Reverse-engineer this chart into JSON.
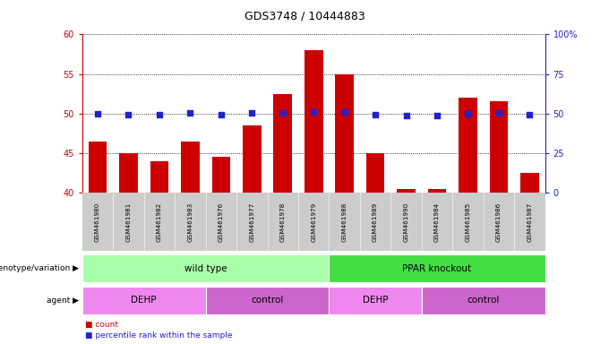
{
  "title": "GDS3748 / 10444883",
  "samples": [
    "GSM461980",
    "GSM461981",
    "GSM461982",
    "GSM461983",
    "GSM461976",
    "GSM461977",
    "GSM461978",
    "GSM461979",
    "GSM461988",
    "GSM461989",
    "GSM461990",
    "GSM461984",
    "GSM461985",
    "GSM461986",
    "GSM461987"
  ],
  "counts": [
    46.5,
    45.0,
    44.0,
    46.5,
    44.5,
    48.5,
    52.5,
    58.0,
    55.0,
    45.0,
    40.5,
    40.5,
    52.0,
    51.5,
    42.5
  ],
  "percentiles": [
    50.0,
    49.5,
    49.0,
    50.5,
    49.5,
    50.5,
    50.5,
    51.0,
    51.0,
    49.5,
    48.5,
    48.5,
    50.0,
    50.5,
    49.5
  ],
  "ylim_left": [
    40,
    60
  ],
  "ylim_right": [
    0,
    100
  ],
  "yticks_left": [
    40,
    45,
    50,
    55,
    60
  ],
  "yticks_right": [
    0,
    25,
    50,
    75,
    100
  ],
  "bar_color": "#cc0000",
  "dot_color": "#2222cc",
  "bar_width": 0.6,
  "genotype_groups": [
    {
      "label": "wild type",
      "start": 0,
      "end": 8,
      "color": "#aaffaa"
    },
    {
      "label": "PPAR knockout",
      "start": 8,
      "end": 15,
      "color": "#44dd44"
    }
  ],
  "agent_groups": [
    {
      "label": "DEHP",
      "start": 0,
      "end": 4,
      "color": "#ee88ee"
    },
    {
      "label": "control",
      "start": 4,
      "end": 8,
      "color": "#cc66cc"
    },
    {
      "label": "DEHP",
      "start": 8,
      "end": 11,
      "color": "#ee88ee"
    },
    {
      "label": "control",
      "start": 11,
      "end": 15,
      "color": "#cc66cc"
    }
  ],
  "legend_count_color": "#cc0000",
  "legend_percentile_color": "#2222cc",
  "xlabel_genotype": "genotype/variation",
  "xlabel_agent": "agent",
  "dot_size": 18,
  "left_axis_color": "#cc0000",
  "right_axis_color": "#2222cc",
  "label_bg": "#cccccc"
}
